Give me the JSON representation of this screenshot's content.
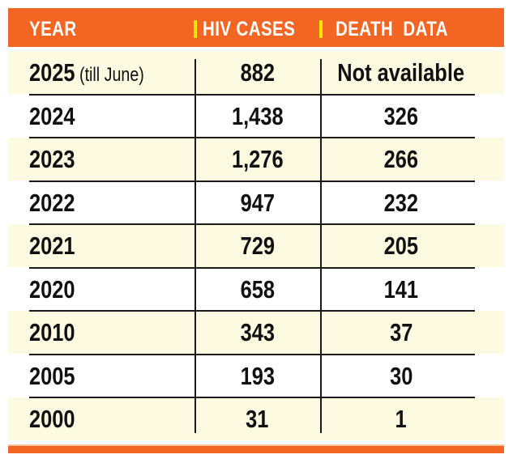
{
  "chart_data": {
    "type": "table",
    "title": "",
    "columns": [
      "YEAR",
      "HIV CASES",
      "DEATH  DATA"
    ],
    "rows": [
      {
        "year": "2025",
        "note": "(till June)",
        "hiv_cases": "882",
        "deaths": "Not available"
      },
      {
        "year": "2024",
        "note": "",
        "hiv_cases": "1,438",
        "deaths": "326"
      },
      {
        "year": "2023",
        "note": "",
        "hiv_cases": "1,276",
        "deaths": "266"
      },
      {
        "year": "2022",
        "note": "",
        "hiv_cases": "947",
        "deaths": "232"
      },
      {
        "year": "2021",
        "note": "",
        "hiv_cases": "729",
        "deaths": "205"
      },
      {
        "year": "2020",
        "note": "",
        "hiv_cases": "658",
        "deaths": "141"
      },
      {
        "year": "2010",
        "note": "",
        "hiv_cases": "343",
        "deaths": "37"
      },
      {
        "year": "2005",
        "note": "",
        "hiv_cases": "193",
        "deaths": "30"
      },
      {
        "year": "2000",
        "note": "",
        "hiv_cases": "31",
        "deaths": "1"
      }
    ]
  },
  "colors": {
    "header_bg": "#f26522",
    "header_text": "#ffffff",
    "header_separator": "#ffe600",
    "row_cream": "#fdfae2",
    "row_white": "#ffffff",
    "text": "#111111"
  }
}
